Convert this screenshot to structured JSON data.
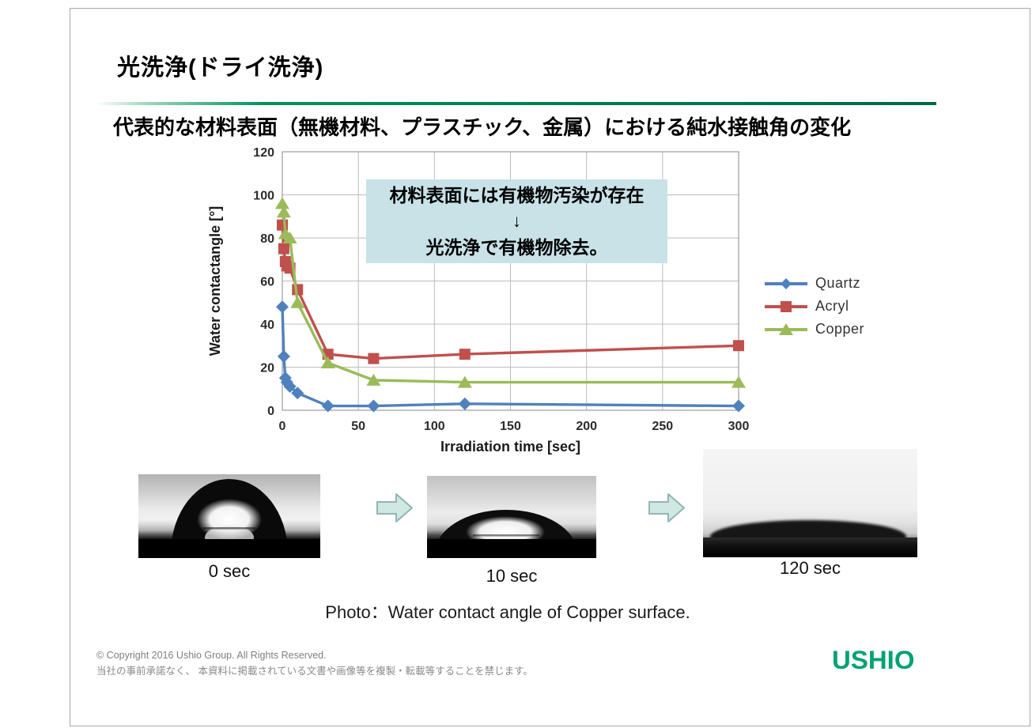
{
  "page": {
    "title": "光洗浄(ドライ洗浄)",
    "subtitle": "代表的な材料表面（無機材料、プラスチック、金属）における純水接触角の変化"
  },
  "annotation": {
    "line1": "材料表面には有機物汚染が存在",
    "arrow_glyph": "↓",
    "line2": "光洗浄で有機物除去。"
  },
  "chart_data": {
    "type": "line",
    "title": "",
    "xlabel": "Irradiation time [sec]",
    "ylabel": "Water contactangle [°]",
    "xlim": [
      0,
      300
    ],
    "ylim": [
      0,
      120
    ],
    "x_ticks": [
      0,
      50,
      100,
      150,
      200,
      250,
      300
    ],
    "y_ticks": [
      0,
      20,
      40,
      60,
      80,
      100,
      120
    ],
    "grid": true,
    "legend_position": "right",
    "series": [
      {
        "name": "Quartz",
        "color": "#4F81BD",
        "marker": "diamond",
        "points": [
          [
            0,
            48
          ],
          [
            1,
            25
          ],
          [
            2,
            15
          ],
          [
            3,
            13
          ],
          [
            5,
            11
          ],
          [
            10,
            8
          ],
          [
            30,
            2
          ],
          [
            60,
            2
          ],
          [
            120,
            3
          ],
          [
            300,
            2
          ]
        ]
      },
      {
        "name": "Acryl",
        "color": "#C0504D",
        "marker": "square",
        "points": [
          [
            0,
            86
          ],
          [
            1,
            75
          ],
          [
            2,
            69
          ],
          [
            3,
            67
          ],
          [
            5,
            66
          ],
          [
            10,
            56
          ],
          [
            30,
            26
          ],
          [
            60,
            24
          ],
          [
            120,
            26
          ],
          [
            300,
            30
          ]
        ]
      },
      {
        "name": "Copper",
        "color": "#9BBB59",
        "marker": "triangle",
        "points": [
          [
            0,
            96
          ],
          [
            1,
            92
          ],
          [
            2,
            82
          ],
          [
            5,
            80
          ],
          [
            10,
            50
          ],
          [
            30,
            22
          ],
          [
            60,
            14
          ],
          [
            120,
            13
          ],
          [
            300,
            13
          ]
        ]
      }
    ]
  },
  "photos": [
    {
      "label": "0 sec"
    },
    {
      "label": "10 sec"
    },
    {
      "label": "120 sec"
    }
  ],
  "caption": "Photo：Water contact angle of Copper surface.",
  "footer": {
    "copyright": "© Copyright 2016 Ushio Group.  All Rights Reserved.",
    "notice": "当社の事前承諾なく、 本資料に掲載されている文書や画像等を複製・転載等することを禁じます。",
    "logo": "USHIO"
  },
  "colors": {
    "accent_green": "#00A273",
    "rule_green": "#00915C",
    "annotation_bg": "#C8E2E8",
    "arrow_fill": "#CFE8E2",
    "arrow_stroke": "#92B4B6"
  }
}
